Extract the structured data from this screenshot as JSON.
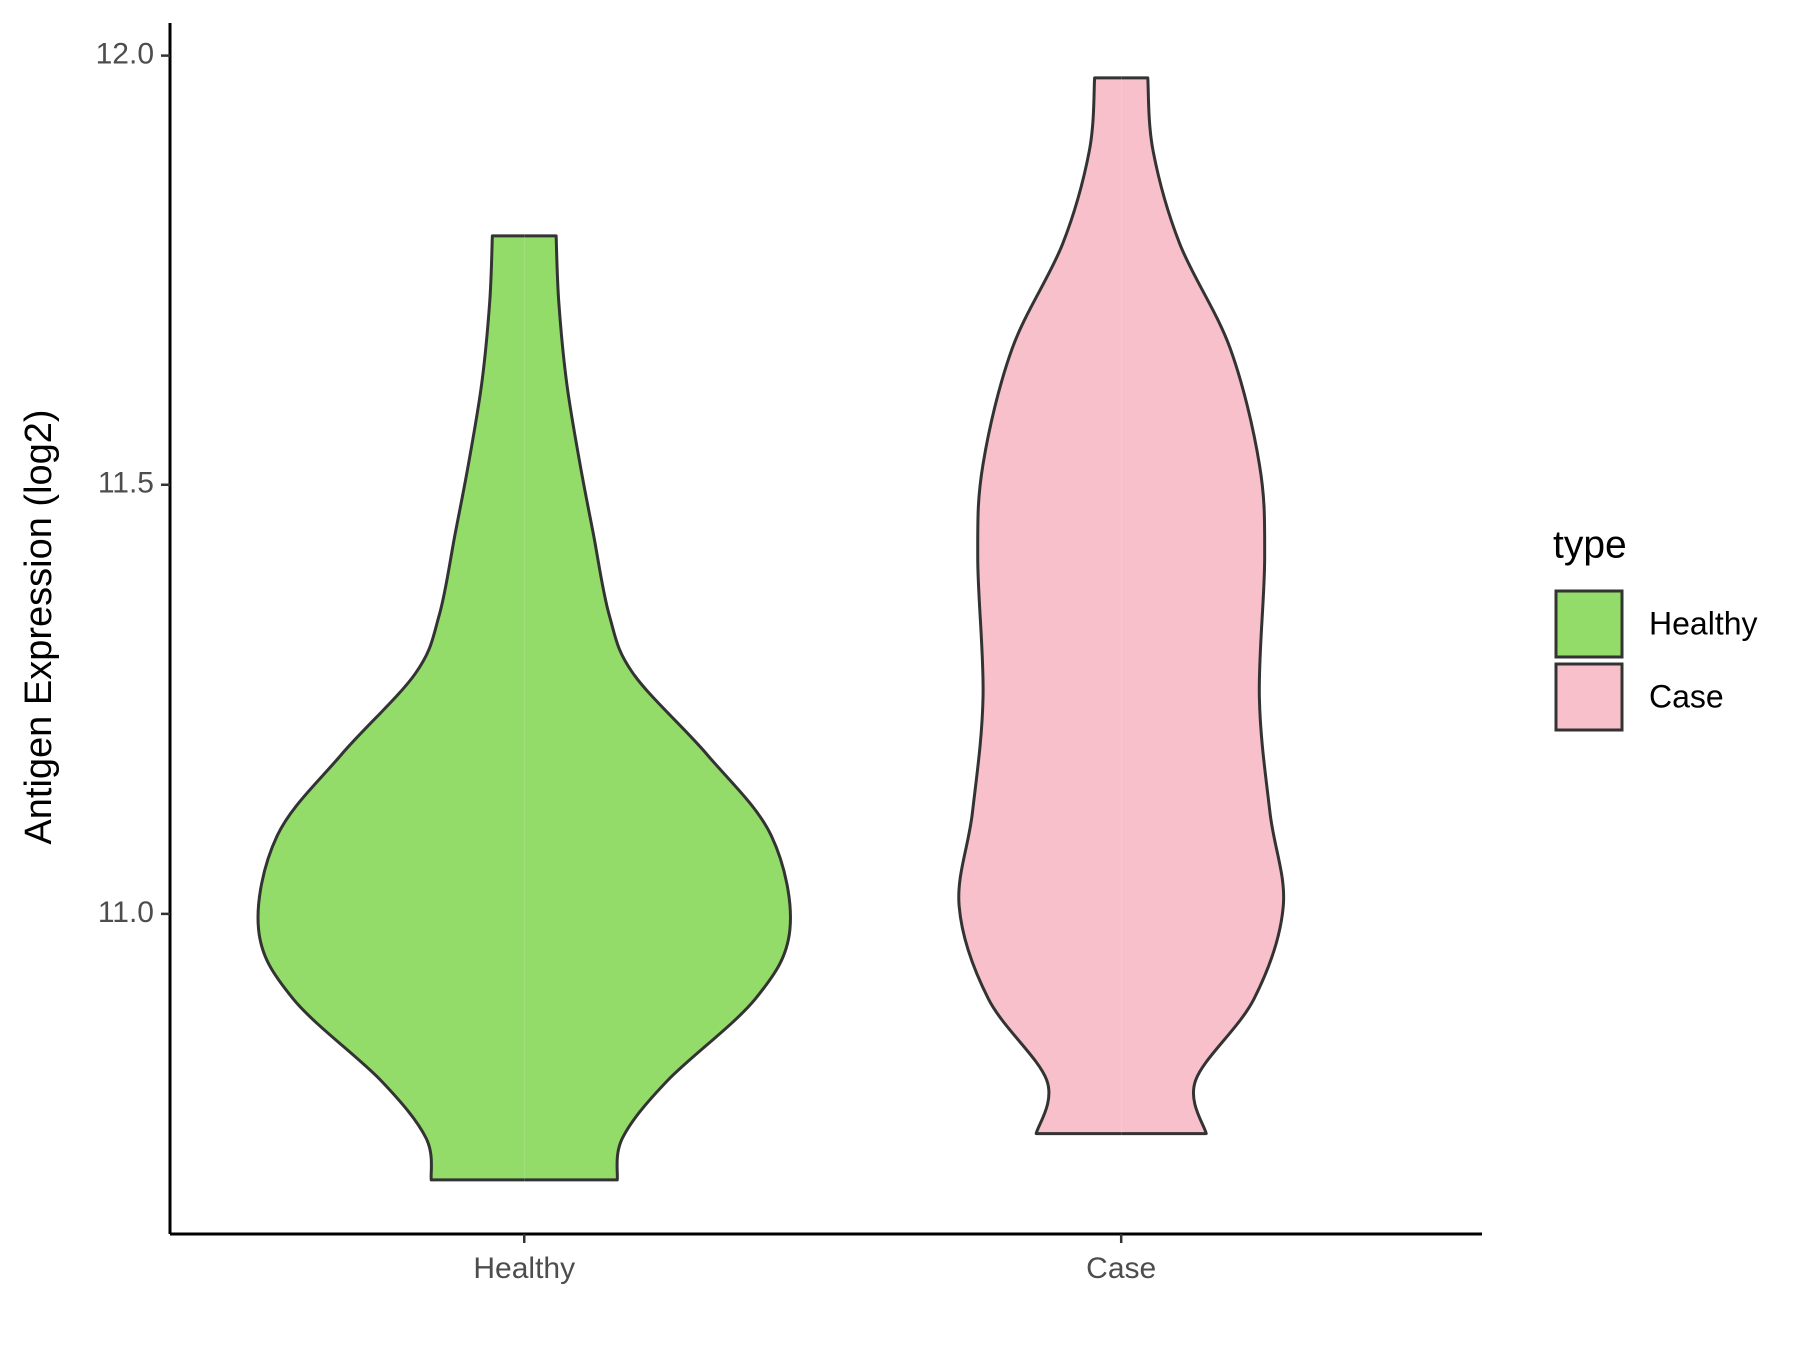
{
  "chart_data": {
    "type": "violin",
    "y_label": "Antigen Expression (log2)",
    "categories": [
      "Healthy",
      "Case"
    ],
    "legend_title": "type",
    "series": [
      {
        "name": "Healthy",
        "color": "#93dc6a",
        "y": [
          11.79,
          11.713,
          11.618,
          11.524,
          11.443,
          11.348,
          11.28,
          11.185,
          11.091,
          10.982,
          10.901,
          10.806,
          10.739,
          10.69
        ],
        "widths": [
          0.12,
          0.13,
          0.16,
          0.21,
          0.26,
          0.32,
          0.41,
          0.69,
          0.93,
          1.0,
          0.87,
          0.54,
          0.37,
          0.35
        ]
      },
      {
        "name": "Case",
        "color": "#f7c0cb",
        "y": [
          11.974,
          11.889,
          11.781,
          11.659,
          11.524,
          11.415,
          11.253,
          11.118,
          11.009,
          10.901,
          10.806,
          10.744
        ],
        "widths": [
          0.1,
          0.12,
          0.22,
          0.41,
          0.52,
          0.54,
          0.52,
          0.56,
          0.61,
          0.5,
          0.28,
          0.32
        ]
      }
    ],
    "ylim": [
      10.627,
      12.038
    ],
    "yticks": [
      {
        "value": 11,
        "label": "11.0"
      },
      {
        "value": 11.5,
        "label": "11.5"
      },
      {
        "value": 12,
        "label": "12.0"
      }
    ]
  }
}
